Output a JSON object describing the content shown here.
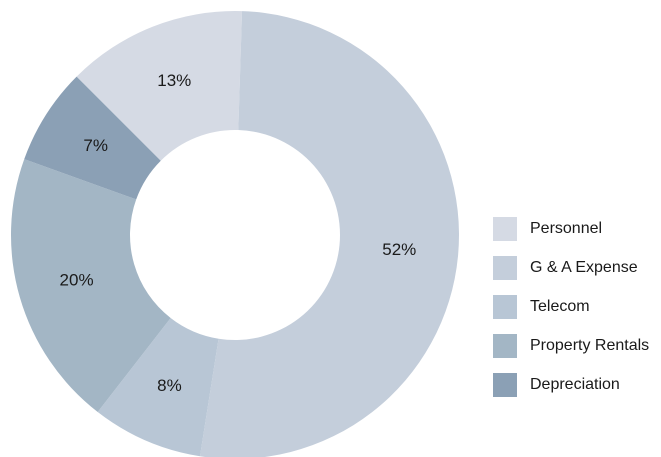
{
  "chart_data": {
    "type": "donut",
    "categories": [
      "Personnel",
      "G & A Expense",
      "Telecom",
      "Property Rentals",
      "Depreciation"
    ],
    "values": [
      13,
      52,
      8,
      20,
      7
    ],
    "value_labels": [
      "13%",
      "52%",
      "8%",
      "20%",
      "7%"
    ],
    "colors": [
      "#d5dae4",
      "#c4cedb",
      "#b8c6d5",
      "#a3b6c5",
      "#8ba0b5"
    ],
    "legend": "right"
  }
}
